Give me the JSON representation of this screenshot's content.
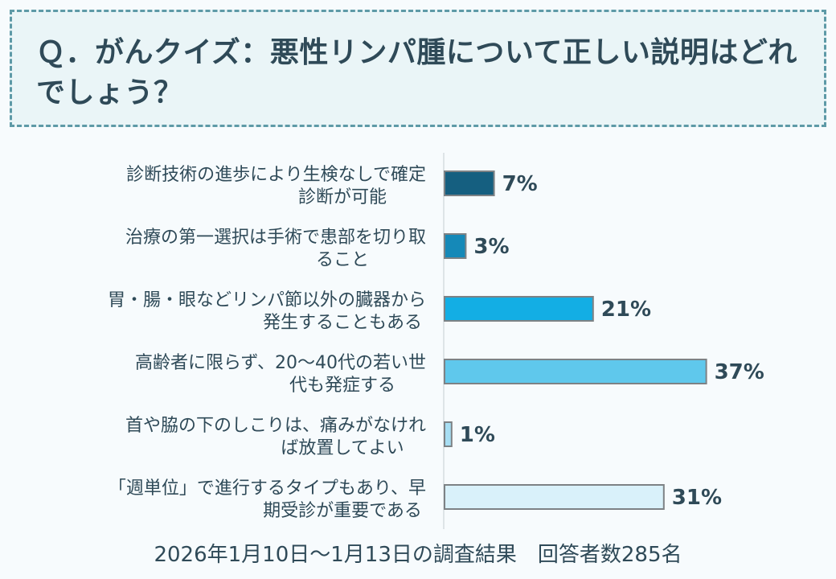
{
  "question": {
    "text": "Ｑ．がんクイズ：悪性リンパ腫について正しい説明はどれでしょう？"
  },
  "chart_data": {
    "type": "bar",
    "orientation": "horizontal",
    "categories": [
      [
        "診断技術の進歩により生検なしで確定",
        "診断が可能"
      ],
      [
        "治療の第一選択は手術で患部を切り取",
        "ること"
      ],
      [
        "胃・腸・眼などリンパ節以外の臓器から",
        "発生することもある"
      ],
      [
        "高齢者に限らず、20～40代の若い世",
        "代も発症する"
      ],
      [
        "首や脇の下のしこりは、痛みがなけれ",
        "ば放置してよい"
      ],
      [
        "「週単位」で進行するタイプもあり、早",
        "期受診が重要である"
      ]
    ],
    "values": [
      7,
      3,
      21,
      37,
      1,
      31
    ],
    "value_labels": [
      "7%",
      "3%",
      "21%",
      "37%",
      "1%",
      "31%"
    ],
    "colors": [
      "#155f80",
      "#1589b8",
      "#13aee4",
      "#5fc8ec",
      "#a7def3",
      "#d9f1fa"
    ],
    "bar_border_color": "#7d8285",
    "grid": false
  },
  "footer": {
    "text": "2026年1月10日～1月13日の調査結果　回答者数285名"
  }
}
